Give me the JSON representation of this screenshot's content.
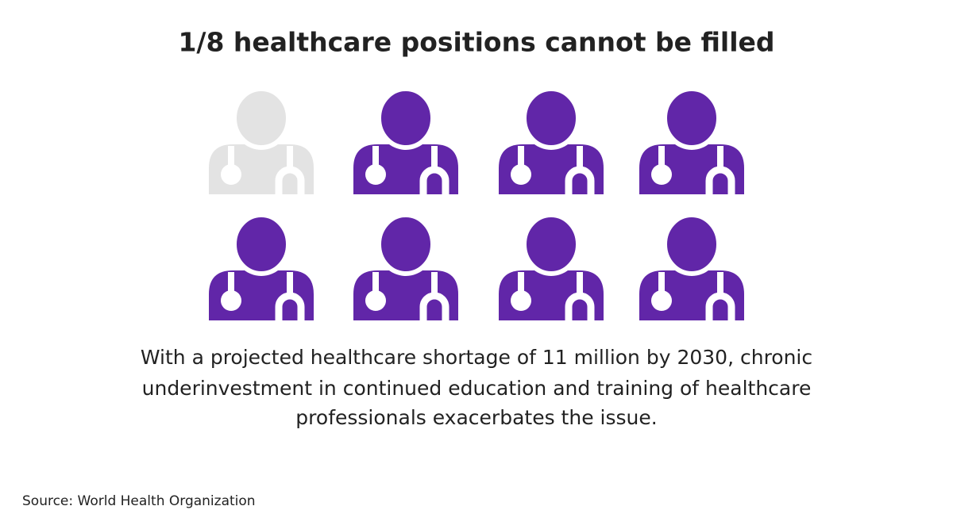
{
  "title": "1/8 healthcare positions cannot be filled",
  "description": [
    "With a projected healthcare shortage of 11 million by 2030, chronic",
    "underinvestment in continued education and training of healthcare",
    "professionals exacerbates the issue."
  ],
  "source": "Source: World Health Organization"
}
